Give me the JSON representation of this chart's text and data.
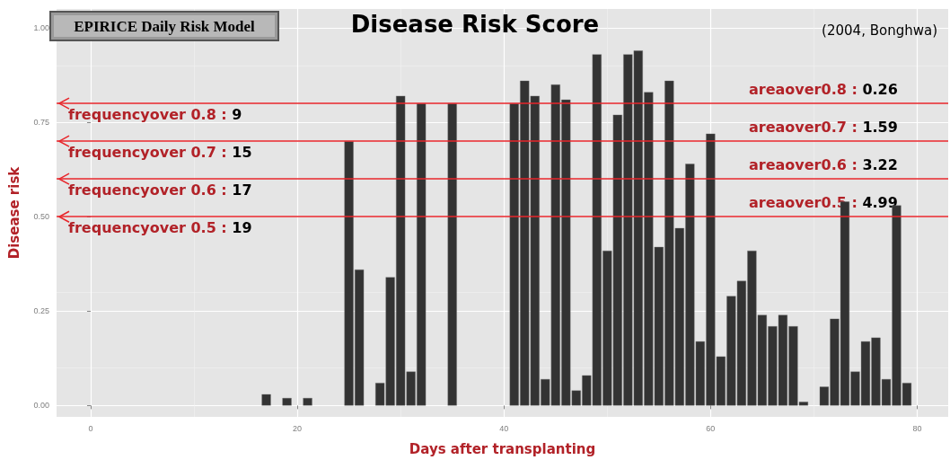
{
  "chart_data": {
    "type": "bar",
    "title": "Disease Risk Score",
    "subtitle": "(2004, Bonghwa)",
    "xlabel": "Days after transplanting",
    "ylabel": "Disease risk",
    "color": "#333333",
    "x": [
      17,
      19,
      21,
      25,
      26,
      28,
      29,
      30,
      31,
      32,
      35,
      41,
      42,
      43,
      44,
      45,
      46,
      47,
      48,
      49,
      50,
      51,
      52,
      53,
      54,
      55,
      56,
      57,
      58,
      59,
      60,
      61,
      62,
      63,
      64,
      65,
      66,
      67,
      68,
      69,
      71,
      72,
      73,
      74,
      75,
      76,
      77,
      78,
      79
    ],
    "values": [
      0.03,
      0.02,
      0.02,
      0.7,
      0.36,
      0.06,
      0.34,
      0.82,
      0.09,
      0.8,
      0.8,
      0.8,
      0.86,
      0.82,
      0.07,
      0.85,
      0.81,
      0.04,
      0.08,
      0.93,
      0.41,
      0.77,
      0.93,
      0.94,
      0.83,
      0.42,
      0.86,
      0.47,
      0.64,
      0.17,
      0.72,
      0.13,
      0.29,
      0.33,
      0.41,
      0.24,
      0.21,
      0.24,
      0.21,
      0.01,
      0.05,
      0.23,
      0.54,
      0.09,
      0.17,
      0.18,
      0.07,
      0.53,
      0.06
    ],
    "xlim": [
      -3.3,
      83
    ],
    "xticks": [
      0,
      20,
      40,
      60,
      80
    ],
    "ylim": [
      -0.03,
      1.05
    ],
    "yticks": [
      {
        "value": 0,
        "label": "0.00"
      },
      {
        "value": 0.25,
        "label": "0.25"
      },
      {
        "value": 0.5,
        "label": "0.50"
      },
      {
        "value": 0.75,
        "label": "0.75"
      },
      {
        "value": 1,
        "label": "1.00"
      }
    ],
    "grid": true,
    "ref_lines": [
      {
        "axis": "y",
        "value": 0.8,
        "label": "frequencyover 0.8 : 9",
        "color": "#e8262b"
      },
      {
        "axis": "y",
        "value": 0.7,
        "label": "frequencyover 0.7 : 15",
        "color": "#e8262b"
      },
      {
        "axis": "y",
        "value": 0.6,
        "label": "frequencyover 0.6 : 17",
        "color": "#e8262b"
      },
      {
        "axis": "y",
        "value": 0.5,
        "label": "frequencyover 0.5 : 19",
        "color": "#e8262b"
      }
    ],
    "annotations": [
      "EPIRICE Daily Risk Model",
      {
        "text": "areaover0.8 : 0.26",
        "y": 0.8
      },
      {
        "text": "areaover0.7 : 1.59",
        "y": 0.7
      },
      {
        "text": "areaover0.6 : 3.22",
        "y": 0.6
      },
      {
        "text": "areaover0.5 : 4.99",
        "y": 0.5
      }
    ]
  }
}
